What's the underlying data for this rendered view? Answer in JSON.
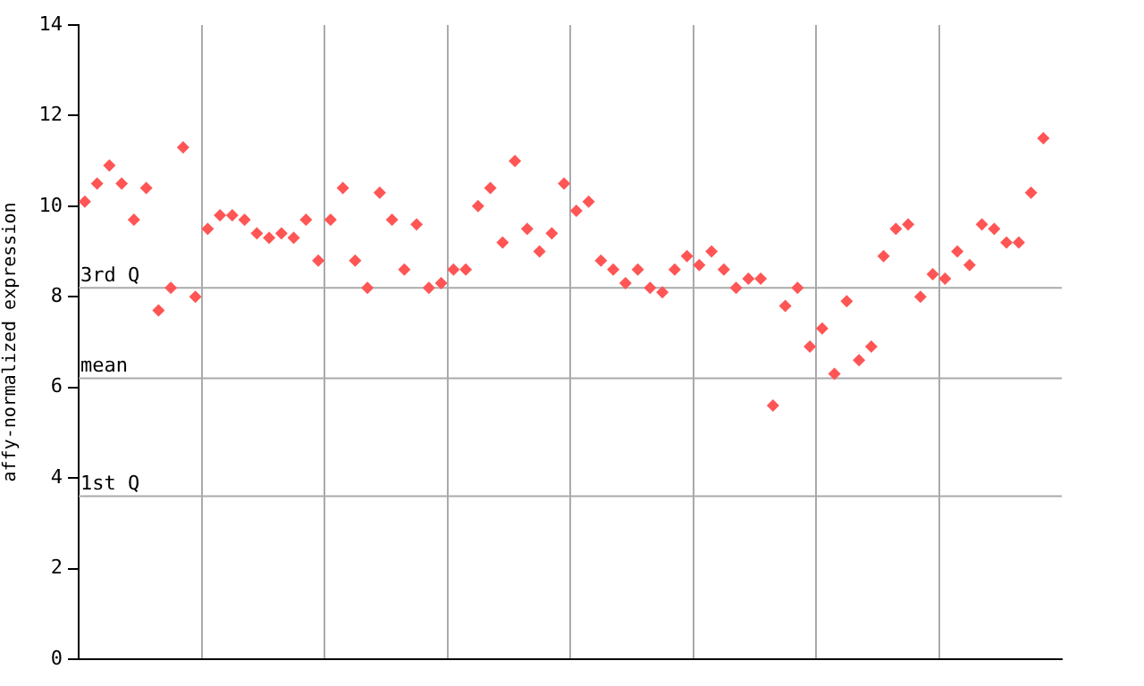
{
  "chart_data": {
    "type": "scatter",
    "ylabel": "affy-normalized expression",
    "categories": [
      null,
      null,
      null,
      null,
      null,
      null,
      null,
      null,
      null,
      null,
      null,
      null,
      null,
      null,
      null,
      null,
      null,
      null,
      null,
      null,
      null,
      null,
      null,
      null,
      null,
      null,
      null,
      null,
      null,
      null,
      null,
      null,
      null,
      null,
      null,
      null,
      null,
      null,
      null,
      null,
      null,
      null,
      null,
      null,
      null,
      null,
      null,
      null,
      null,
      null,
      null,
      null,
      null,
      null,
      null,
      null,
      null,
      null,
      null,
      null,
      null,
      null,
      null,
      null,
      null,
      null,
      null,
      null,
      null,
      null,
      null,
      null,
      null,
      null,
      null,
      null,
      null,
      null,
      null,
      null
    ],
    "series": [
      {
        "color": "#ff5555",
        "values": [
          10.1,
          10.5,
          10.9,
          10.5,
          9.7,
          10.4,
          7.7,
          8.2,
          11.3,
          8.0,
          9.5,
          9.8,
          9.8,
          9.7,
          9.4,
          9.3,
          9.4,
          9.3,
          9.7,
          8.8,
          9.7,
          10.4,
          8.8,
          8.2,
          10.3,
          9.7,
          8.6,
          9.6,
          8.2,
          8.3,
          8.6,
          8.6,
          10.0,
          10.4,
          9.2,
          11.0,
          9.5,
          9.0,
          9.4,
          10.5,
          9.9,
          10.1,
          8.8,
          8.6,
          8.3,
          8.6,
          8.2,
          8.1,
          8.6,
          8.9,
          8.7,
          9.0,
          8.6,
          8.2,
          8.4,
          8.4,
          5.6,
          7.8,
          8.2,
          6.9,
          7.3,
          6.3,
          7.9,
          6.6,
          6.9,
          8.9,
          9.5,
          9.6,
          8.0,
          8.5,
          8.4,
          9.0,
          8.7,
          9.6,
          9.5,
          9.2,
          9.2,
          10.3,
          11.5,
          null
        ]
      }
    ],
    "ylim": [
      0,
      14
    ],
    "yticks": [
      0,
      2,
      4,
      6,
      8,
      10,
      12,
      14
    ],
    "grid": "x",
    "legend": false,
    "marker": "diamond",
    "ref_lines": [
      {
        "axis": "y",
        "value": 8.2,
        "label": "3rd Q",
        "color": "#aaaaaa"
      },
      {
        "axis": "y",
        "value": 6.2,
        "label": "mean",
        "color": "#aaaaaa"
      },
      {
        "axis": "y",
        "value": 3.6,
        "label": "1st Q",
        "color": "#aaaaaa"
      }
    ]
  }
}
